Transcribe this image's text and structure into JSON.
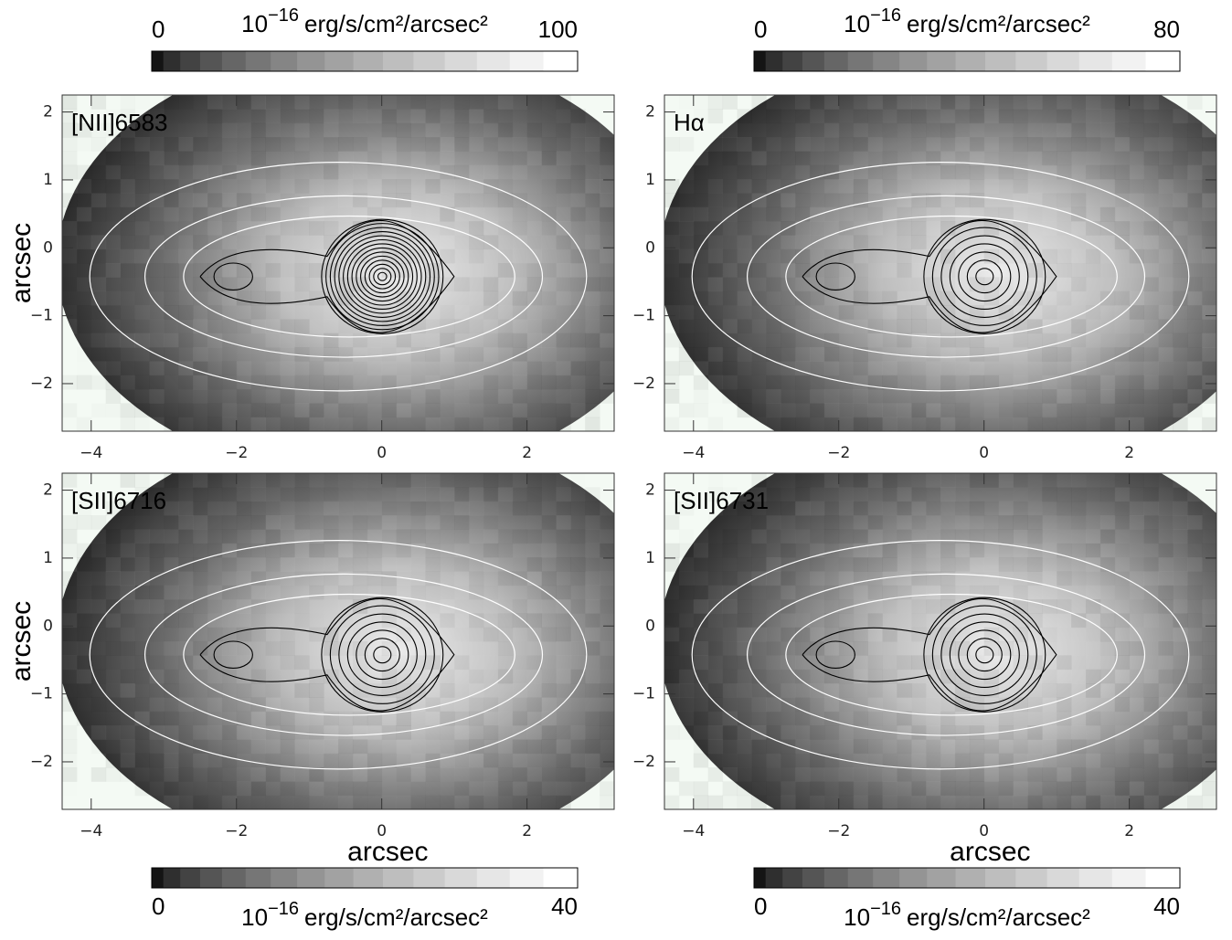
{
  "chart_data": [
    {
      "type": "image",
      "label": "[NII]6583",
      "ylabel": "arcsec",
      "xlim": [
        -4.4,
        3.2
      ],
      "ylim": [
        -2.7,
        2.25
      ],
      "xticks": [
        {
          "value": -4,
          "label": "−4"
        },
        {
          "value": -2,
          "label": "−2"
        },
        0,
        2
      ],
      "yticks": [
        {
          "value": -2,
          "label": "−2"
        },
        {
          "value": -1,
          "label": "−1"
        },
        0,
        1,
        2
      ],
      "colorbar": {
        "lim": [
          0,
          100
        ],
        "ticks": [
          0,
          100
        ],
        "unit_base": "10",
        "unit_exponent": "−16",
        "unit": "erg/s/cm²/arcsec²"
      }
    },
    {
      "type": "image",
      "label": "Hα",
      "xlim": [
        -4.4,
        3.2
      ],
      "ylim": [
        -2.7,
        2.25
      ],
      "xticks": [
        {
          "value": -4,
          "label": "−4"
        },
        {
          "value": -2,
          "label": "−2"
        },
        0,
        2
      ],
      "yticks": [
        {
          "value": -2,
          "label": "−2"
        },
        {
          "value": -1,
          "label": "−1"
        },
        0,
        1,
        2
      ],
      "colorbar": {
        "lim": [
          0,
          80
        ],
        "ticks": [
          0,
          80
        ],
        "unit_base": "10",
        "unit_exponent": "−16",
        "unit": "erg/s/cm²/arcsec²"
      }
    },
    {
      "type": "image",
      "label": "[SII]6716",
      "ylabel": "arcsec",
      "xlabel": "arcsec",
      "xlim": [
        -4.4,
        3.2
      ],
      "ylim": [
        -2.7,
        2.25
      ],
      "xticks": [
        {
          "value": -4,
          "label": "−4"
        },
        {
          "value": -2,
          "label": "−2"
        },
        0,
        2
      ],
      "yticks": [
        {
          "value": -2,
          "label": "−2"
        },
        {
          "value": -1,
          "label": "−1"
        },
        0,
        1,
        2
      ],
      "colorbar": {
        "lim": [
          0,
          40
        ],
        "ticks": [
          0,
          40
        ],
        "unit_base": "10",
        "unit_exponent": "−16",
        "unit": "erg/s/cm²/arcsec²"
      }
    },
    {
      "type": "image",
      "label": "[SII]6731",
      "xlabel": "arcsec",
      "xlim": [
        -4.4,
        3.2
      ],
      "ylim": [
        -2.7,
        2.25
      ],
      "xticks": [
        {
          "value": -4,
          "label": "−4"
        },
        {
          "value": -2,
          "label": "−2"
        },
        0,
        2
      ],
      "yticks": [
        {
          "value": -2,
          "label": "−2"
        },
        {
          "value": -1,
          "label": "−1"
        },
        0,
        1,
        2
      ],
      "colorbar": {
        "lim": [
          0,
          40
        ],
        "ticks": [
          0,
          40
        ],
        "unit_base": "10",
        "unit_exponent": "−16",
        "unit": "erg/s/cm²/arcsec²"
      }
    }
  ]
}
